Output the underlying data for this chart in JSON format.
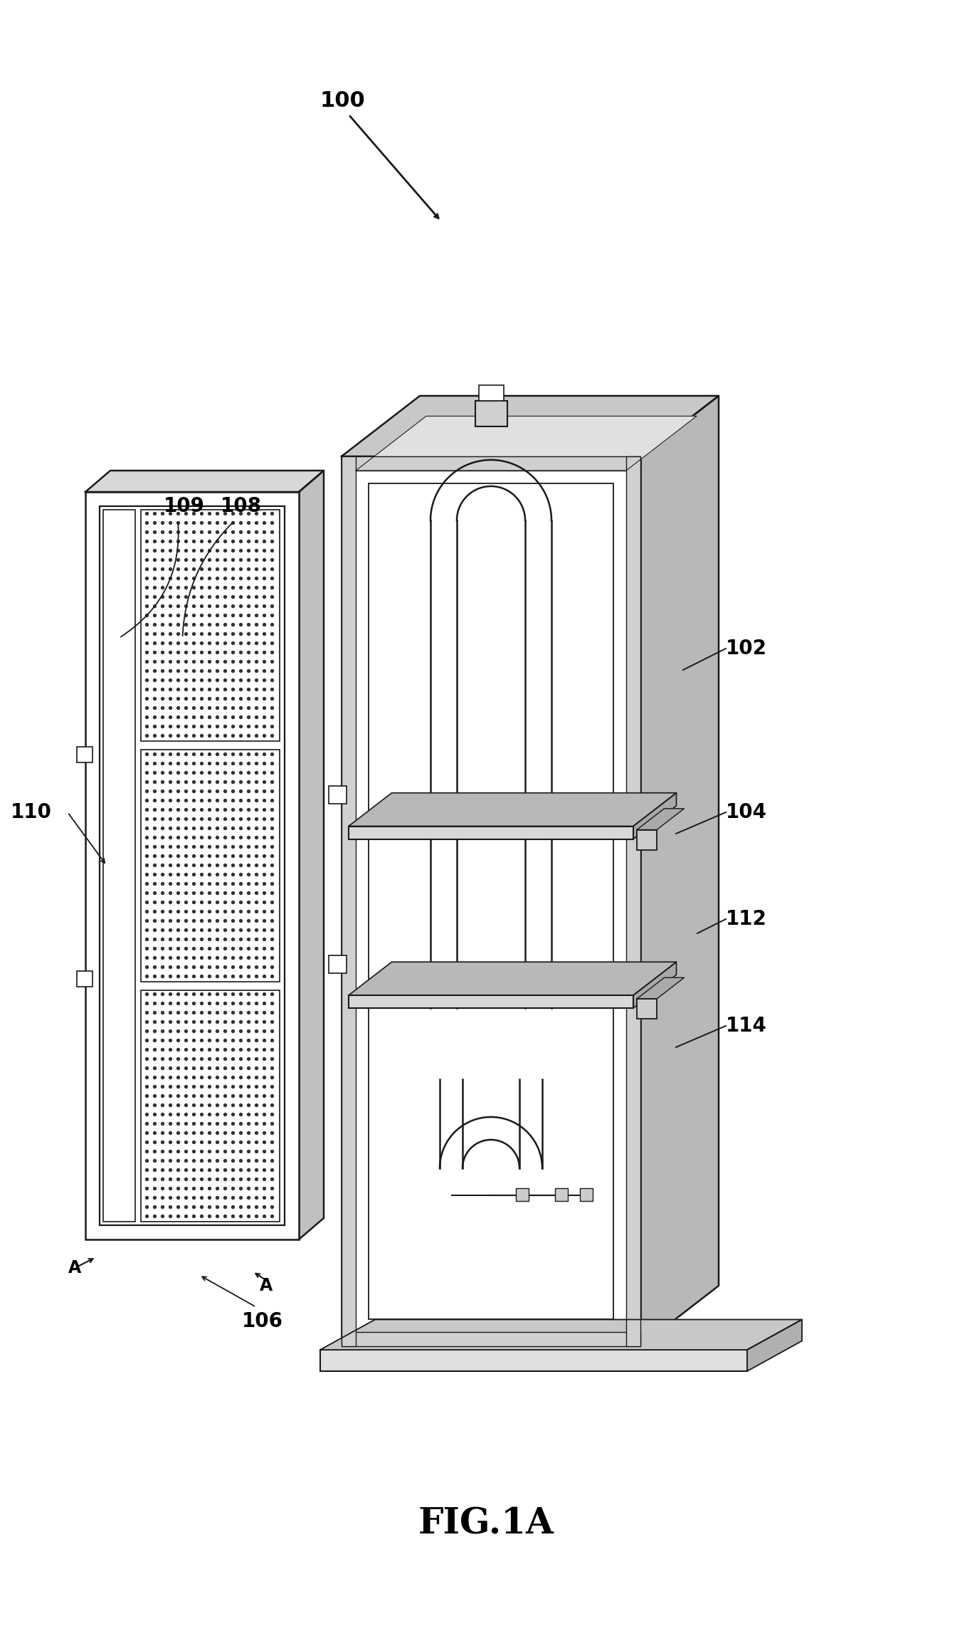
{
  "bg_color": "#ffffff",
  "line_color": "#1a1a1a",
  "title": "FIG.1A",
  "title_fontsize": 36,
  "label_fontsize": 20,
  "figsize": [
    13.66,
    22.91
  ],
  "dpi": 100
}
